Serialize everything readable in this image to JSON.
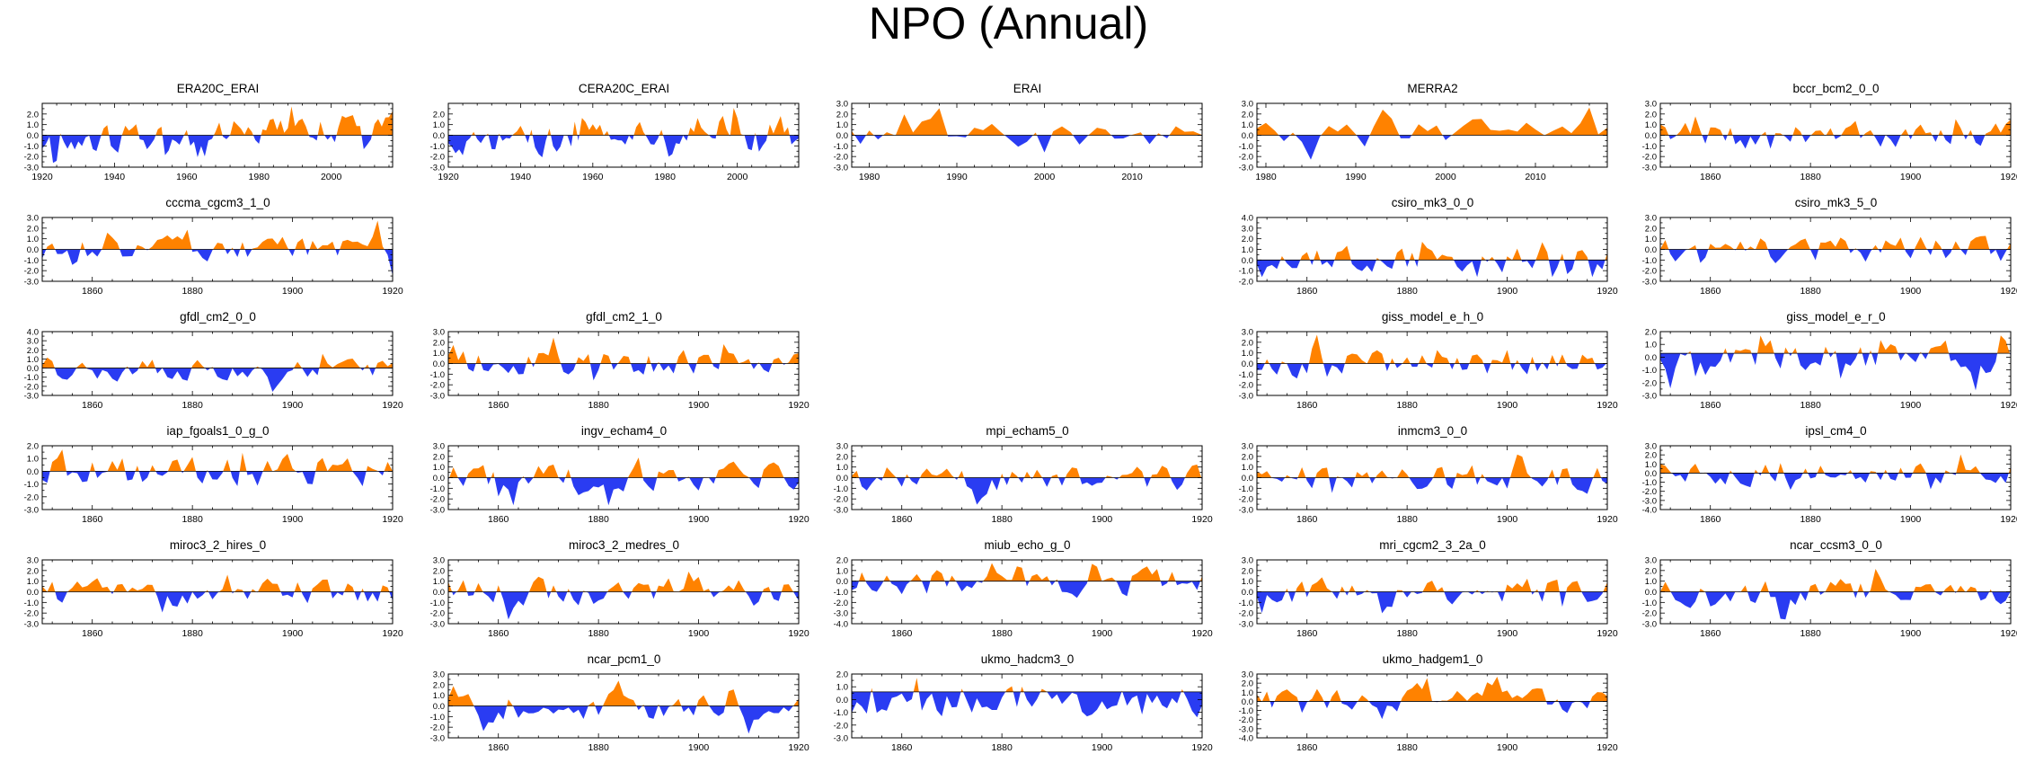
{
  "title": "NPO (Annual)",
  "colors": {
    "positive": "#ff8200",
    "negative": "#2a3cf2",
    "frame": "#000000"
  },
  "chart_data": [
    {
      "name": "ERA20C_ERAI",
      "type": "area",
      "title": "ERA20C_ERAI",
      "x_range": [
        1920,
        2017
      ],
      "x_ticks": [
        1920,
        1940,
        1960,
        1980,
        2000
      ],
      "y_range": [
        -3,
        3
      ],
      "y_ticks": [
        -3,
        -2,
        -1,
        0,
        1,
        2
      ],
      "baseline": 0,
      "seed": 11,
      "amp": 1.4,
      "trend": 1.2
    },
    {
      "name": "CERA20C_ERAI",
      "type": "area",
      "title": "CERA20C_ERAI",
      "x_range": [
        1920,
        2017
      ],
      "x_ticks": [
        1920,
        1940,
        1960,
        1980,
        2000
      ],
      "y_range": [
        -3,
        3
      ],
      "y_ticks": [
        -3,
        -2,
        -1,
        0,
        1,
        2
      ],
      "baseline": 0,
      "seed": 12,
      "amp": 1.3,
      "trend": 1.1
    },
    {
      "name": "ERAI",
      "type": "area",
      "title": "ERAI",
      "x_range": [
        1978,
        2018
      ],
      "x_ticks": [
        1980,
        1990,
        2000,
        2010
      ],
      "y_range": [
        -3,
        3
      ],
      "y_ticks": [
        -3,
        -2,
        -1,
        0,
        1,
        2,
        3
      ],
      "baseline": 0,
      "seed": 13,
      "amp": 1.2,
      "trend": 0
    },
    {
      "name": "MERRA2",
      "type": "area",
      "title": "MERRA2",
      "x_range": [
        1979,
        2018
      ],
      "x_ticks": [
        1980,
        1990,
        2000,
        2010
      ],
      "y_range": [
        -3,
        3
      ],
      "y_ticks": [
        -3,
        -2,
        -1,
        0,
        1,
        2,
        3
      ],
      "baseline": 0,
      "seed": 14,
      "amp": 1.2,
      "trend": 0
    },
    {
      "name": "bccr_bcm2_0_0",
      "type": "area",
      "title": "bccr_bcm2_0_0",
      "x_range": [
        1850,
        1920
      ],
      "x_ticks": [
        1860,
        1880,
        1900,
        1920
      ],
      "y_range": [
        -3,
        3
      ],
      "y_ticks": [
        -3,
        -2,
        -1,
        0,
        1,
        2,
        3
      ],
      "baseline": 0,
      "seed": 15,
      "amp": 1.1,
      "trend": 0
    },
    {
      "name": "cccma_cgcm3_1_0",
      "type": "area",
      "title": "cccma_cgcm3_1_0",
      "x_range": [
        1850,
        1920
      ],
      "x_ticks": [
        1860,
        1880,
        1900,
        1920
      ],
      "y_range": [
        -3,
        3
      ],
      "y_ticks": [
        -3,
        -2,
        -1,
        0,
        1,
        2,
        3
      ],
      "baseline": 0,
      "seed": 21,
      "amp": 1.1,
      "trend": 0
    },
    {
      "name": "csiro_mk3_0_0",
      "type": "area",
      "title": "csiro_mk3_0_0",
      "x_range": [
        1850,
        1920
      ],
      "x_ticks": [
        1860,
        1880,
        1900,
        1920
      ],
      "y_range": [
        -2,
        4
      ],
      "y_ticks": [
        -2,
        -1,
        0,
        1,
        2,
        3,
        4
      ],
      "baseline": 0,
      "seed": 24,
      "amp": 1.1,
      "trend": 0
    },
    {
      "name": "csiro_mk3_5_0",
      "type": "area",
      "title": "csiro_mk3_5_0",
      "x_range": [
        1850,
        1920
      ],
      "x_ticks": [
        1860,
        1880,
        1900,
        1920
      ],
      "y_range": [
        -3,
        3
      ],
      "y_ticks": [
        -3,
        -2,
        -1,
        0,
        1,
        2,
        3
      ],
      "baseline": 0,
      "seed": 25,
      "amp": 1.1,
      "trend": 0
    },
    {
      "name": "gfdl_cm2_0_0",
      "type": "area",
      "title": "gfdl_cm2_0_0",
      "x_range": [
        1850,
        1920
      ],
      "x_ticks": [
        1860,
        1880,
        1900,
        1920
      ],
      "y_range": [
        -3,
        4
      ],
      "y_ticks": [
        -3,
        -2,
        -1,
        0,
        1,
        2,
        3,
        4
      ],
      "baseline": 0,
      "seed": 31,
      "amp": 1.1,
      "trend": 0
    },
    {
      "name": "gfdl_cm2_1_0",
      "type": "area",
      "title": "gfdl_cm2_1_0",
      "x_range": [
        1850,
        1920
      ],
      "x_ticks": [
        1860,
        1880,
        1900,
        1920
      ],
      "y_range": [
        -3,
        3
      ],
      "y_ticks": [
        -3,
        -2,
        -1,
        0,
        1,
        2,
        3
      ],
      "baseline": 0,
      "seed": 32,
      "amp": 1.1,
      "trend": 0
    },
    {
      "name": "giss_model_e_h_0",
      "type": "area",
      "title": "giss_model_e_h_0",
      "x_range": [
        1850,
        1920
      ],
      "x_ticks": [
        1860,
        1880,
        1900,
        1920
      ],
      "y_range": [
        -3,
        3
      ],
      "y_ticks": [
        -3,
        -2,
        -1,
        0,
        1,
        2,
        3
      ],
      "baseline": 0,
      "seed": 34,
      "amp": 1.1,
      "trend": 0
    },
    {
      "name": "giss_model_e_r_0",
      "type": "area",
      "title": "giss_model_e_r_0",
      "x_range": [
        1850,
        1920
      ],
      "x_ticks": [
        1860,
        1880,
        1900,
        1920
      ],
      "y_range": [
        -3,
        2
      ],
      "y_ticks": [
        -3,
        -2,
        -1,
        0,
        1,
        2
      ],
      "baseline": 0.3,
      "seed": 35,
      "amp": 1.1,
      "trend": 0
    },
    {
      "name": "iap_fgoals1_0_g_0",
      "type": "area",
      "title": "iap_fgoals1_0_g_0",
      "x_range": [
        1850,
        1920
      ],
      "x_ticks": [
        1860,
        1880,
        1900,
        1920
      ],
      "y_range": [
        -3,
        2
      ],
      "y_ticks": [
        -3,
        -2,
        -1,
        0,
        1,
        2
      ],
      "baseline": 0,
      "seed": 41,
      "amp": 1.1,
      "trend": 0
    },
    {
      "name": "ingv_echam4_0",
      "type": "area",
      "title": "ingv_echam4_0",
      "x_range": [
        1850,
        1920
      ],
      "x_ticks": [
        1860,
        1880,
        1900,
        1920
      ],
      "y_range": [
        -3,
        3
      ],
      "y_ticks": [
        -3,
        -2,
        -1,
        0,
        1,
        2,
        3
      ],
      "baseline": 0,
      "seed": 42,
      "amp": 1.1,
      "trend": 0
    },
    {
      "name": "mpi_echam5_0",
      "type": "area",
      "title": "mpi_echam5_0",
      "x_range": [
        1850,
        1920
      ],
      "x_ticks": [
        1860,
        1880,
        1900,
        1920
      ],
      "y_range": [
        -3,
        3
      ],
      "y_ticks": [
        -3,
        -2,
        -1,
        0,
        1,
        2,
        3
      ],
      "baseline": 0,
      "seed": 43,
      "amp": 1.1,
      "trend": 0
    },
    {
      "name": "inmcm3_0_0",
      "type": "area",
      "title": "inmcm3_0_0",
      "x_range": [
        1850,
        1920
      ],
      "x_ticks": [
        1860,
        1880,
        1900,
        1920
      ],
      "y_range": [
        -3,
        3
      ],
      "y_ticks": [
        -3,
        -2,
        -1,
        0,
        1,
        2,
        3
      ],
      "baseline": 0,
      "seed": 44,
      "amp": 1.1,
      "trend": 0
    },
    {
      "name": "ipsl_cm4_0",
      "type": "area",
      "title": "ipsl_cm4_0",
      "x_range": [
        1850,
        1920
      ],
      "x_ticks": [
        1860,
        1880,
        1900,
        1920
      ],
      "y_range": [
        -4,
        3
      ],
      "y_ticks": [
        -4,
        -3,
        -2,
        -1,
        0,
        1,
        2,
        3
      ],
      "baseline": 0,
      "seed": 45,
      "amp": 1.1,
      "trend": 0
    },
    {
      "name": "miroc3_2_hires_0",
      "type": "area",
      "title": "miroc3_2_hires_0",
      "x_range": [
        1850,
        1920
      ],
      "x_ticks": [
        1860,
        1880,
        1900,
        1920
      ],
      "y_range": [
        -3,
        3
      ],
      "y_ticks": [
        -3,
        -2,
        -1,
        0,
        1,
        2,
        3
      ],
      "baseline": 0,
      "seed": 51,
      "amp": 1.1,
      "trend": 0
    },
    {
      "name": "miroc3_2_medres_0",
      "type": "area",
      "title": "miroc3_2_medres_0",
      "x_range": [
        1850,
        1920
      ],
      "x_ticks": [
        1860,
        1880,
        1900,
        1920
      ],
      "y_range": [
        -3,
        3
      ],
      "y_ticks": [
        -3,
        -2,
        -1,
        0,
        1,
        2,
        3
      ],
      "baseline": 0,
      "seed": 52,
      "amp": 1.1,
      "trend": 0
    },
    {
      "name": "miub_echo_g_0",
      "type": "area",
      "title": "miub_echo_g_0",
      "x_range": [
        1850,
        1920
      ],
      "x_ticks": [
        1860,
        1880,
        1900,
        1920
      ],
      "y_range": [
        -4,
        2
      ],
      "y_ticks": [
        -4,
        -3,
        -2,
        -1,
        0,
        1,
        2
      ],
      "baseline": 0,
      "seed": 53,
      "amp": 1.1,
      "trend": 0
    },
    {
      "name": "mri_cgcm2_3_2a_0",
      "type": "area",
      "title": "mri_cgcm2_3_2a_0",
      "x_range": [
        1850,
        1920
      ],
      "x_ticks": [
        1860,
        1880,
        1900,
        1920
      ],
      "y_range": [
        -3,
        3
      ],
      "y_ticks": [
        -3,
        -2,
        -1,
        0,
        1,
        2,
        3
      ],
      "baseline": 0,
      "seed": 54,
      "amp": 1.1,
      "trend": 0
    },
    {
      "name": "ncar_ccsm3_0_0",
      "type": "area",
      "title": "ncar_ccsm3_0_0",
      "x_range": [
        1850,
        1920
      ],
      "x_ticks": [
        1860,
        1880,
        1900,
        1920
      ],
      "y_range": [
        -3,
        3
      ],
      "y_ticks": [
        -3,
        -2,
        -1,
        0,
        1,
        2,
        3
      ],
      "baseline": 0,
      "seed": 55,
      "amp": 1.1,
      "trend": 0
    },
    {
      "name": "ncar_pcm1_0",
      "type": "area",
      "title": "ncar_pcm1_0",
      "x_range": [
        1850,
        1920
      ],
      "x_ticks": [
        1860,
        1880,
        1900,
        1920
      ],
      "y_range": [
        -3,
        3
      ],
      "y_ticks": [
        -3,
        -2,
        -1,
        0,
        1,
        2,
        3
      ],
      "baseline": 0,
      "seed": 62,
      "amp": 1.1,
      "trend": 0
    },
    {
      "name": "ukmo_hadcm3_0",
      "type": "area",
      "title": "ukmo_hadcm3_0",
      "x_range": [
        1850,
        1920
      ],
      "x_ticks": [
        1860,
        1880,
        1900,
        1920
      ],
      "y_range": [
        -3,
        2
      ],
      "y_ticks": [
        -3,
        -2,
        -1,
        0,
        1,
        2
      ],
      "baseline": 0.6,
      "seed": 63,
      "amp": 1.1,
      "trend": 0
    },
    {
      "name": "ukmo_hadgem1_0",
      "type": "area",
      "title": "ukmo_hadgem1_0",
      "x_range": [
        1850,
        1920
      ],
      "x_ticks": [
        1860,
        1880,
        1900,
        1920
      ],
      "y_range": [
        -4,
        3
      ],
      "y_ticks": [
        -4,
        -3,
        -2,
        -1,
        0,
        1,
        2,
        3
      ],
      "baseline": 0,
      "seed": 64,
      "amp": 1.1,
      "trend": 0
    }
  ]
}
